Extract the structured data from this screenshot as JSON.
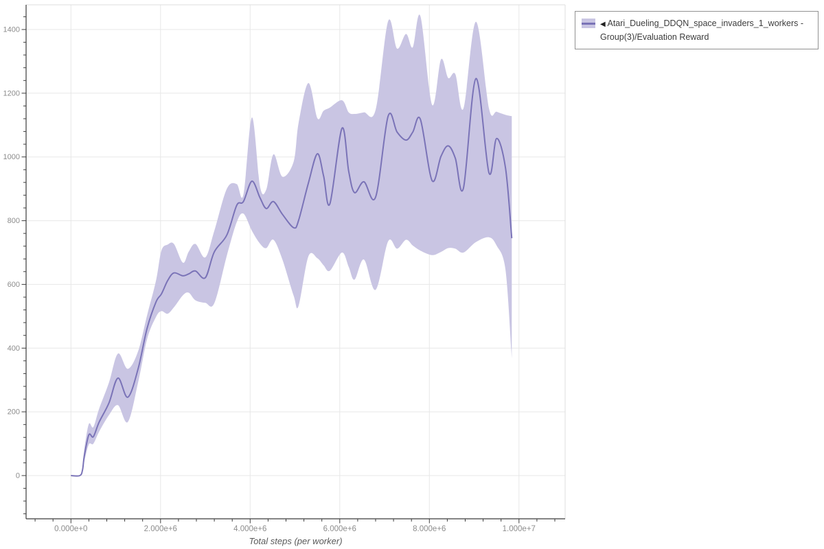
{
  "page": {
    "background": "#ffffff"
  },
  "legend": {
    "collapse_icon": "◀",
    "label": "Atari_Dueling_DDQN_space_invaders_1_workers - Group(3)/Evaluation Reward"
  },
  "colors": {
    "line": "#7a73b7",
    "band": "#c9c5e3",
    "grid": "#e7e7e7",
    "plot_border": "#dedede",
    "axis": "#3b3b3b",
    "tick_label": "#8c8c8c",
    "axis_title": "#5a5a5a",
    "legend_border": "#919191",
    "legend_text": "#3c3c3c"
  },
  "chart_data": {
    "type": "line",
    "title": "",
    "xlabel": "Total steps (per worker)",
    "ylabel": "",
    "grid": true,
    "legend_position": "outside-top-right",
    "x_unit": "steps (values in millions)",
    "x_tick_labels": [
      "0.000e+0",
      "2.000e+6",
      "4.000e+6",
      "6.000e+6",
      "8.000e+6",
      "1.000e+7"
    ],
    "x_tick_values_e6": [
      0,
      2,
      4,
      6,
      8,
      10
    ],
    "x_minor_step_e6": 0.4,
    "y_ticks": [
      0,
      200,
      400,
      600,
      800,
      1000,
      1200,
      1400
    ],
    "y_minor_step": 40,
    "xlim_e6": [
      -1.0,
      11.03
    ],
    "ylim": [
      -135.7,
      1477.5
    ],
    "series": [
      {
        "name": "Atari_Dueling_DDQN_space_invaders_1_workers - Group(3)/Evaluation Reward",
        "color": "#7a73b7",
        "band_color": "#c9c5e3",
        "point_format": [
          "steps_e6",
          "mean",
          "band_min",
          "band_max"
        ],
        "points": [
          [
            0.0,
            0,
            0,
            0
          ],
          [
            0.2,
            0,
            0,
            0
          ],
          [
            0.26,
            18,
            12,
            26
          ],
          [
            0.3,
            62,
            45,
            85
          ],
          [
            0.4,
            128,
            98,
            162
          ],
          [
            0.5,
            122,
            100,
            152
          ],
          [
            0.63,
            168,
            138,
            210
          ],
          [
            0.85,
            228,
            190,
            292
          ],
          [
            1.05,
            306,
            221,
            383
          ],
          [
            1.27,
            246,
            168,
            335
          ],
          [
            1.5,
            335,
            292,
            390
          ],
          [
            1.7,
            462,
            428,
            503
          ],
          [
            1.9,
            545,
            498,
            612
          ],
          [
            2.02,
            570,
            516,
            706
          ],
          [
            2.16,
            612,
            508,
            725
          ],
          [
            2.3,
            636,
            528,
            727
          ],
          [
            2.5,
            627,
            566,
            668
          ],
          [
            2.63,
            633,
            574,
            703
          ],
          [
            2.78,
            642,
            550,
            727
          ],
          [
            3.0,
            621,
            542,
            685
          ],
          [
            3.2,
            702,
            541,
            768
          ],
          [
            3.48,
            755,
            690,
            900
          ],
          [
            3.7,
            848,
            795,
            915
          ],
          [
            3.85,
            860,
            822,
            882
          ],
          [
            4.04,
            924,
            768,
            1124
          ],
          [
            4.22,
            872,
            728,
            908
          ],
          [
            4.36,
            838,
            714,
            898
          ],
          [
            4.52,
            860,
            740,
            1008
          ],
          [
            4.72,
            820,
            678,
            938
          ],
          [
            4.97,
            778,
            565,
            985
          ],
          [
            5.08,
            800,
            532,
            1105
          ],
          [
            5.3,
            918,
            688,
            1232
          ],
          [
            5.5,
            1010,
            682,
            1122
          ],
          [
            5.64,
            940,
            660,
            1145
          ],
          [
            5.78,
            853,
            643,
            1155
          ],
          [
            6.05,
            1090,
            700,
            1178
          ],
          [
            6.2,
            955,
            655,
            1140
          ],
          [
            6.33,
            888,
            615,
            1135
          ],
          [
            6.54,
            922,
            678,
            1140
          ],
          [
            6.8,
            874,
            583,
            1148
          ],
          [
            7.08,
            1128,
            735,
            1426
          ],
          [
            7.28,
            1078,
            712,
            1340
          ],
          [
            7.48,
            1053,
            740,
            1386
          ],
          [
            7.63,
            1078,
            722,
            1344
          ],
          [
            7.8,
            1118,
            706,
            1442
          ],
          [
            8.06,
            926,
            692,
            1164
          ],
          [
            8.26,
            1002,
            702,
            1306
          ],
          [
            8.42,
            1035,
            714,
            1248
          ],
          [
            8.58,
            996,
            712,
            1260
          ],
          [
            8.76,
            902,
            700,
            1152
          ],
          [
            9.04,
            1246,
            733,
            1424
          ],
          [
            9.33,
            950,
            748,
            1152
          ],
          [
            9.5,
            1058,
            722,
            1142
          ],
          [
            9.7,
            965,
            645,
            1132
          ],
          [
            9.84,
            745,
            368,
            1128
          ]
        ]
      }
    ]
  }
}
